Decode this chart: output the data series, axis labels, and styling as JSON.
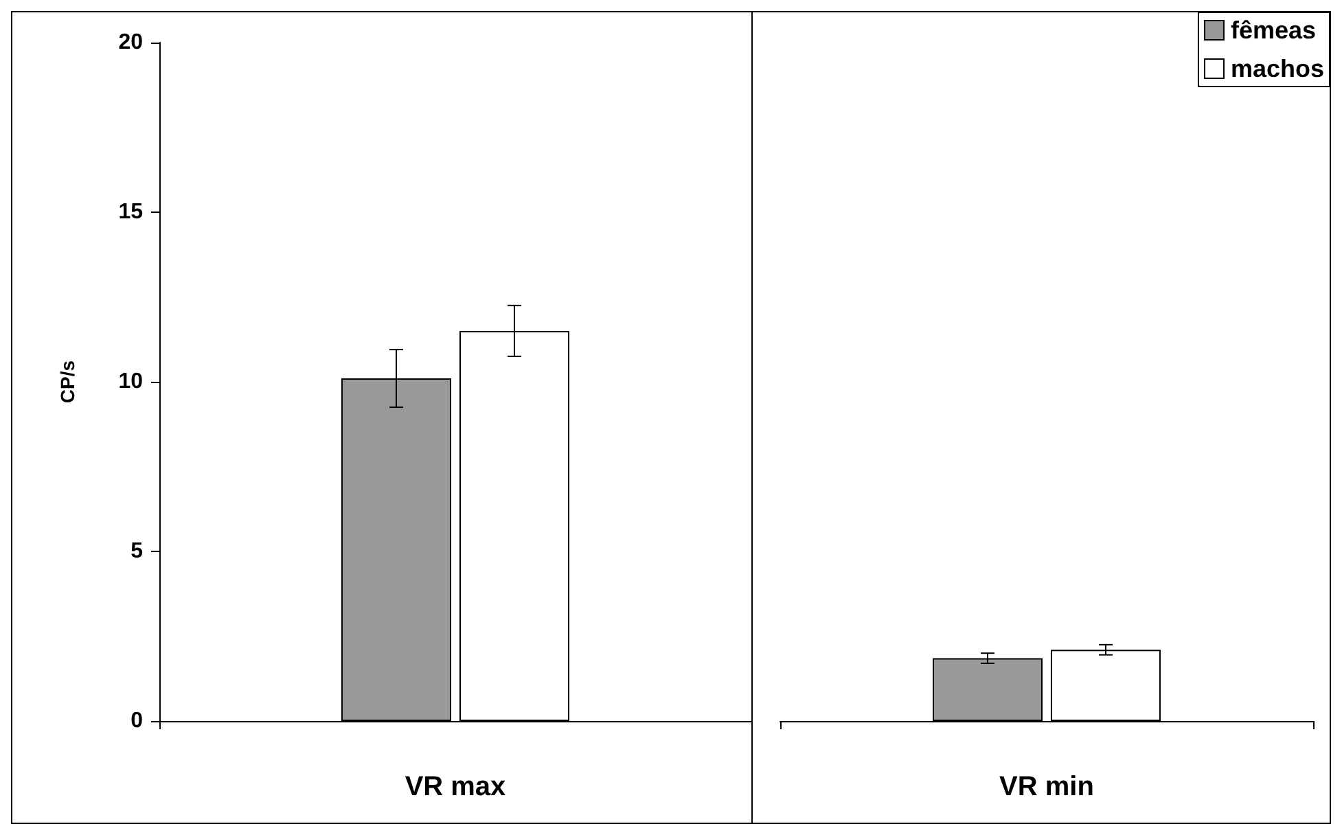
{
  "chart_data": [
    {
      "type": "bar",
      "categories": [
        "VR max"
      ],
      "ylabel": "CP/s",
      "ylim": [
        0,
        20
      ],
      "yticks": [
        0,
        5,
        10,
        15,
        20
      ],
      "grid": false,
      "legend": false,
      "series": [
        {
          "color": "#999999",
          "values": [
            10.1
          ],
          "errors": [
            0.85
          ]
        },
        {
          "color": "#ffffff",
          "values": [
            11.5
          ],
          "errors": [
            0.75
          ]
        }
      ]
    },
    {
      "type": "bar",
      "categories": [
        "VR min"
      ],
      "ylim": [
        0,
        20
      ],
      "tick_labels": "x",
      "grid": false,
      "legend": "top right",
      "series": [
        {
          "name": "fêmeas",
          "color": "#999999",
          "values": [
            1.85
          ],
          "errors": [
            0.15
          ]
        },
        {
          "name": "machos",
          "color": "#ffffff",
          "values": [
            2.1
          ],
          "errors": [
            0.15
          ]
        }
      ]
    }
  ]
}
